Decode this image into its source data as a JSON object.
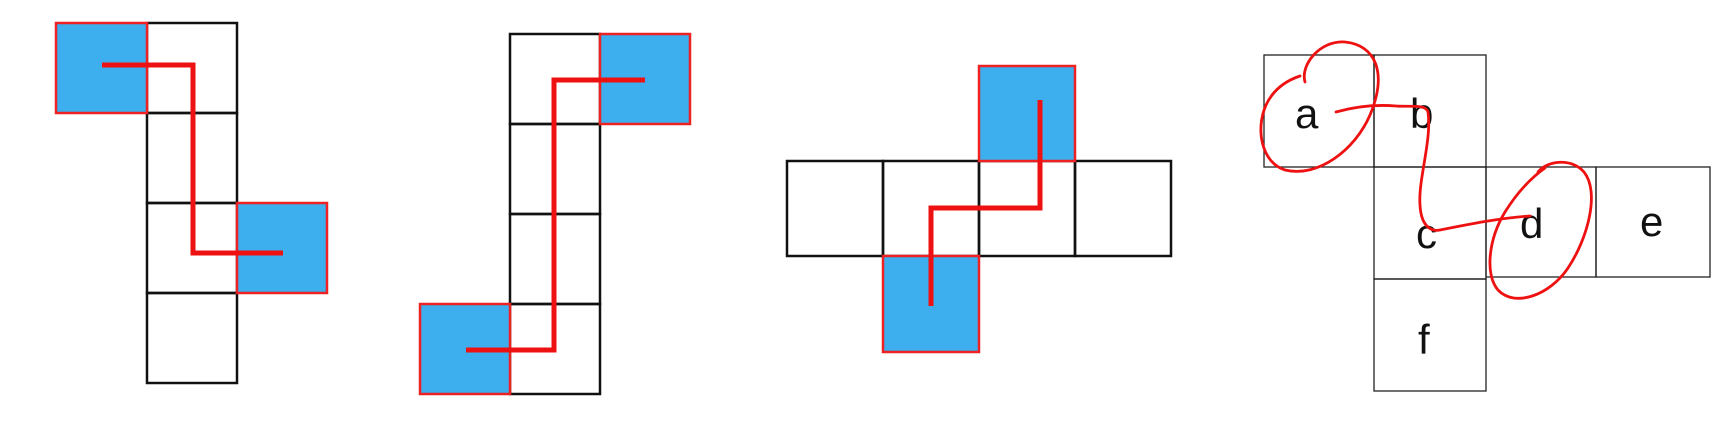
{
  "colors": {
    "highlight_fill": "#3daeee",
    "highlight_border": "#ee2222",
    "path_stroke": "#ee1111",
    "cell_border": "#111111"
  },
  "figures": [
    {
      "name": "net-1",
      "highlighted_faces": 2,
      "total_faces": 6
    },
    {
      "name": "net-2",
      "highlighted_faces": 2,
      "total_faces": 6
    },
    {
      "name": "net-3",
      "highlighted_faces": 2,
      "total_faces": 6
    },
    {
      "name": "net-4",
      "labels": {
        "a": "a",
        "b": "b",
        "c": "c",
        "d": "d",
        "e": "e",
        "f": "f"
      },
      "circled": [
        "a",
        "d"
      ]
    }
  ]
}
